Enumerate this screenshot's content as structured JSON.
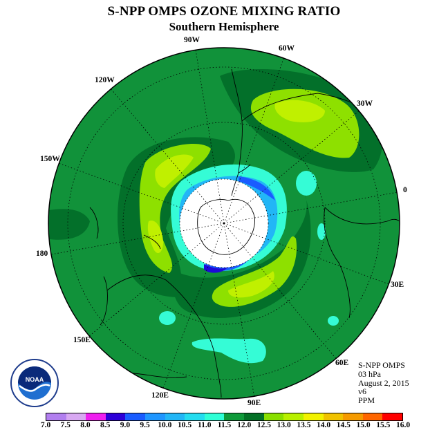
{
  "title": "S-NPP OMPS OZONE MIXING RATIO",
  "subtitle": "Southern Hemisphere",
  "longitude_labels": [
    "90W",
    "60W",
    "30W",
    "0",
    "30E",
    "60E",
    "90E",
    "120E",
    "150E",
    "180",
    "150W",
    "120W"
  ],
  "info": {
    "line1": "S-NPP OMPS",
    "line2": "03 hPa",
    "line3": "August 2, 2015",
    "line4": "v6",
    "line5": "PPM"
  },
  "logo": {
    "text": "NOAA",
    "ring_text": "NATIONAL OCEANIC AND ATMOSPHERIC ADMINISTRATION · U.S. DEPARTMENT OF COMMERCE"
  },
  "colorbar": {
    "ticks": [
      "7.0",
      "7.5",
      "8.0",
      "8.5",
      "9.0",
      "9.5",
      "10.0",
      "10.5",
      "11.0",
      "11.5",
      "12.0",
      "12.5",
      "13.0",
      "13.5",
      "14.0",
      "14.5",
      "15.0",
      "15.5",
      "16.0"
    ],
    "colors": [
      "#b27fef",
      "#d8a8f2",
      "#ef1fef",
      "#2d00d8",
      "#1a5cff",
      "#1f96ff",
      "#22b6f6",
      "#24dcef",
      "#2fffd6",
      "#0f9a3a",
      "#037026",
      "#89df00",
      "#b8f000",
      "#f2f200",
      "#f0c200",
      "#f59a00",
      "#ff6600",
      "#ff0000",
      "#8a5a3a"
    ]
  },
  "colors": {
    "background_green": "#11923a",
    "dark_green": "#03702a",
    "light_green": "#8ee000",
    "yellow_green": "#c0f000",
    "cyan": "#35fcd6",
    "blue": "#2c8cff",
    "dark_blue": "#1d0ad8"
  }
}
